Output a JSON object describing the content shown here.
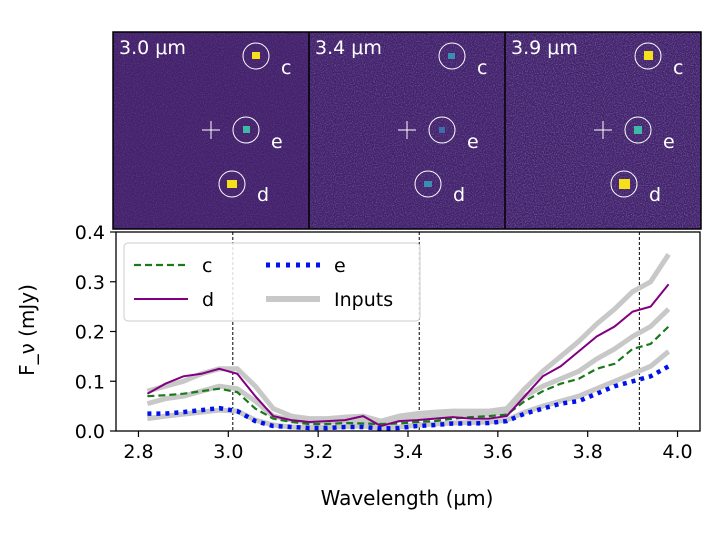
{
  "panels": [
    {
      "label": "3.0 μm",
      "planets": [
        {
          "name": "c"
        },
        {
          "name": "e"
        },
        {
          "name": "d"
        }
      ]
    },
    {
      "label": "3.4 μm",
      "planets": [
        {
          "name": "c"
        },
        {
          "name": "e"
        },
        {
          "name": "d"
        }
      ]
    },
    {
      "label": "3.9 μm",
      "planets": [
        {
          "name": "c"
        },
        {
          "name": "e"
        },
        {
          "name": "d"
        }
      ]
    }
  ],
  "colors": {
    "c": "#1a7a1a",
    "d": "#800080",
    "e": "#0011ee",
    "inputs": "#c8c8c8",
    "image_bg": "#45206b",
    "image_noise": "#3b4f8a",
    "planet_hot": "#f5e11a"
  },
  "chart_data": {
    "type": "line",
    "xlabel": "Wavelength (μm)",
    "ylabel": "F_ν (mJy)",
    "xlim": [
      2.75,
      4.05
    ],
    "ylim": [
      0.0,
      0.4
    ],
    "xticks": [
      "2.8",
      "3.0",
      "3.2",
      "3.4",
      "3.6",
      "3.8",
      "4.0"
    ],
    "yticks": [
      "0.0",
      "0.1",
      "0.2",
      "0.3",
      "0.4"
    ],
    "vlines": [
      3.01,
      3.425,
      3.915
    ],
    "legend": {
      "position": "top-left",
      "entries": [
        "c",
        "d",
        "e",
        "Inputs"
      ]
    },
    "x": [
      2.82,
      2.86,
      2.9,
      2.94,
      2.98,
      3.02,
      3.06,
      3.1,
      3.14,
      3.18,
      3.22,
      3.26,
      3.3,
      3.34,
      3.38,
      3.42,
      3.46,
      3.5,
      3.54,
      3.58,
      3.62,
      3.66,
      3.7,
      3.74,
      3.78,
      3.82,
      3.86,
      3.9,
      3.94,
      3.98
    ],
    "series": [
      {
        "name": "c",
        "style": "dashed",
        "values": [
          0.07,
          0.072,
          0.075,
          0.08,
          0.085,
          0.078,
          0.045,
          0.025,
          0.018,
          0.014,
          0.014,
          0.016,
          0.015,
          0.014,
          0.015,
          0.018,
          0.02,
          0.025,
          0.028,
          0.03,
          0.033,
          0.06,
          0.08,
          0.095,
          0.105,
          0.125,
          0.135,
          0.165,
          0.175,
          0.21
        ]
      },
      {
        "name": "d",
        "style": "solid",
        "values": [
          0.075,
          0.095,
          0.11,
          0.115,
          0.125,
          0.115,
          0.07,
          0.03,
          0.022,
          0.018,
          0.02,
          0.022,
          0.03,
          0.01,
          0.02,
          0.022,
          0.025,
          0.028,
          0.025,
          0.025,
          0.03,
          0.07,
          0.11,
          0.13,
          0.16,
          0.19,
          0.21,
          0.24,
          0.25,
          0.295
        ]
      },
      {
        "name": "e",
        "style": "dotted",
        "values": [
          0.035,
          0.035,
          0.038,
          0.042,
          0.046,
          0.04,
          0.02,
          0.01,
          0.008,
          0.006,
          0.006,
          0.008,
          0.008,
          0.005,
          0.006,
          0.01,
          0.012,
          0.015,
          0.015,
          0.016,
          0.02,
          0.035,
          0.045,
          0.055,
          0.06,
          0.075,
          0.09,
          0.1,
          0.11,
          0.13
        ]
      },
      {
        "name": "Inputs",
        "style": "thick",
        "values": [
          0.08,
          0.09,
          0.1,
          0.115,
          0.125,
          0.125,
          0.09,
          0.045,
          0.03,
          0.025,
          0.025,
          0.028,
          0.03,
          0.02,
          0.03,
          0.035,
          0.038,
          0.04,
          0.04,
          0.04,
          0.045,
          0.085,
          0.12,
          0.15,
          0.18,
          0.215,
          0.245,
          0.28,
          0.3,
          0.355
        ]
      },
      {
        "name": "Inputs",
        "style": "thick",
        "values": [
          0.055,
          0.065,
          0.07,
          0.08,
          0.09,
          0.085,
          0.06,
          0.03,
          0.022,
          0.018,
          0.018,
          0.02,
          0.02,
          0.015,
          0.022,
          0.025,
          0.028,
          0.032,
          0.033,
          0.034,
          0.038,
          0.07,
          0.09,
          0.105,
          0.12,
          0.145,
          0.165,
          0.19,
          0.21,
          0.245
        ]
      },
      {
        "name": "Inputs",
        "style": "thick",
        "values": [
          0.025,
          0.03,
          0.034,
          0.038,
          0.042,
          0.04,
          0.022,
          0.012,
          0.008,
          0.007,
          0.007,
          0.009,
          0.01,
          0.006,
          0.008,
          0.012,
          0.014,
          0.016,
          0.017,
          0.018,
          0.022,
          0.038,
          0.05,
          0.06,
          0.07,
          0.085,
          0.1,
          0.115,
          0.13,
          0.16
        ]
      }
    ]
  }
}
